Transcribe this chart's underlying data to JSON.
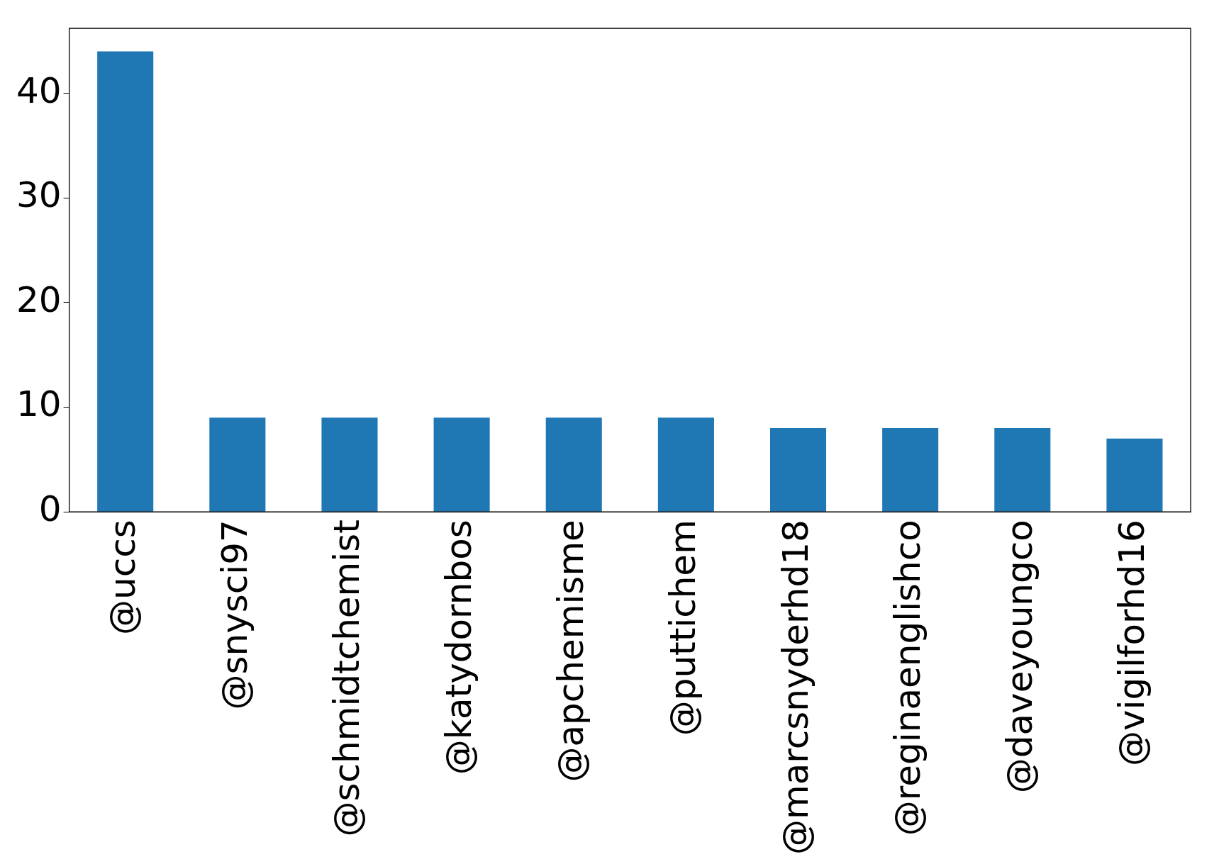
{
  "chart_data": {
    "type": "bar",
    "categories": [
      "@uccs",
      "@snysci97",
      "@schmidtchemist",
      "@katydornbos",
      "@apchemisme",
      "@puttichem",
      "@marcsnyderhd18",
      "@reginaenglishco",
      "@daveyoungco",
      "@vigilforhd16"
    ],
    "values": [
      44,
      9,
      9,
      9,
      9,
      9,
      8,
      8,
      8,
      7
    ],
    "color": "#1f77b4",
    "ylim": [
      0,
      46.2
    ],
    "yticks": [
      0,
      10,
      20,
      30,
      40
    ],
    "grid": false,
    "legend": false
  }
}
